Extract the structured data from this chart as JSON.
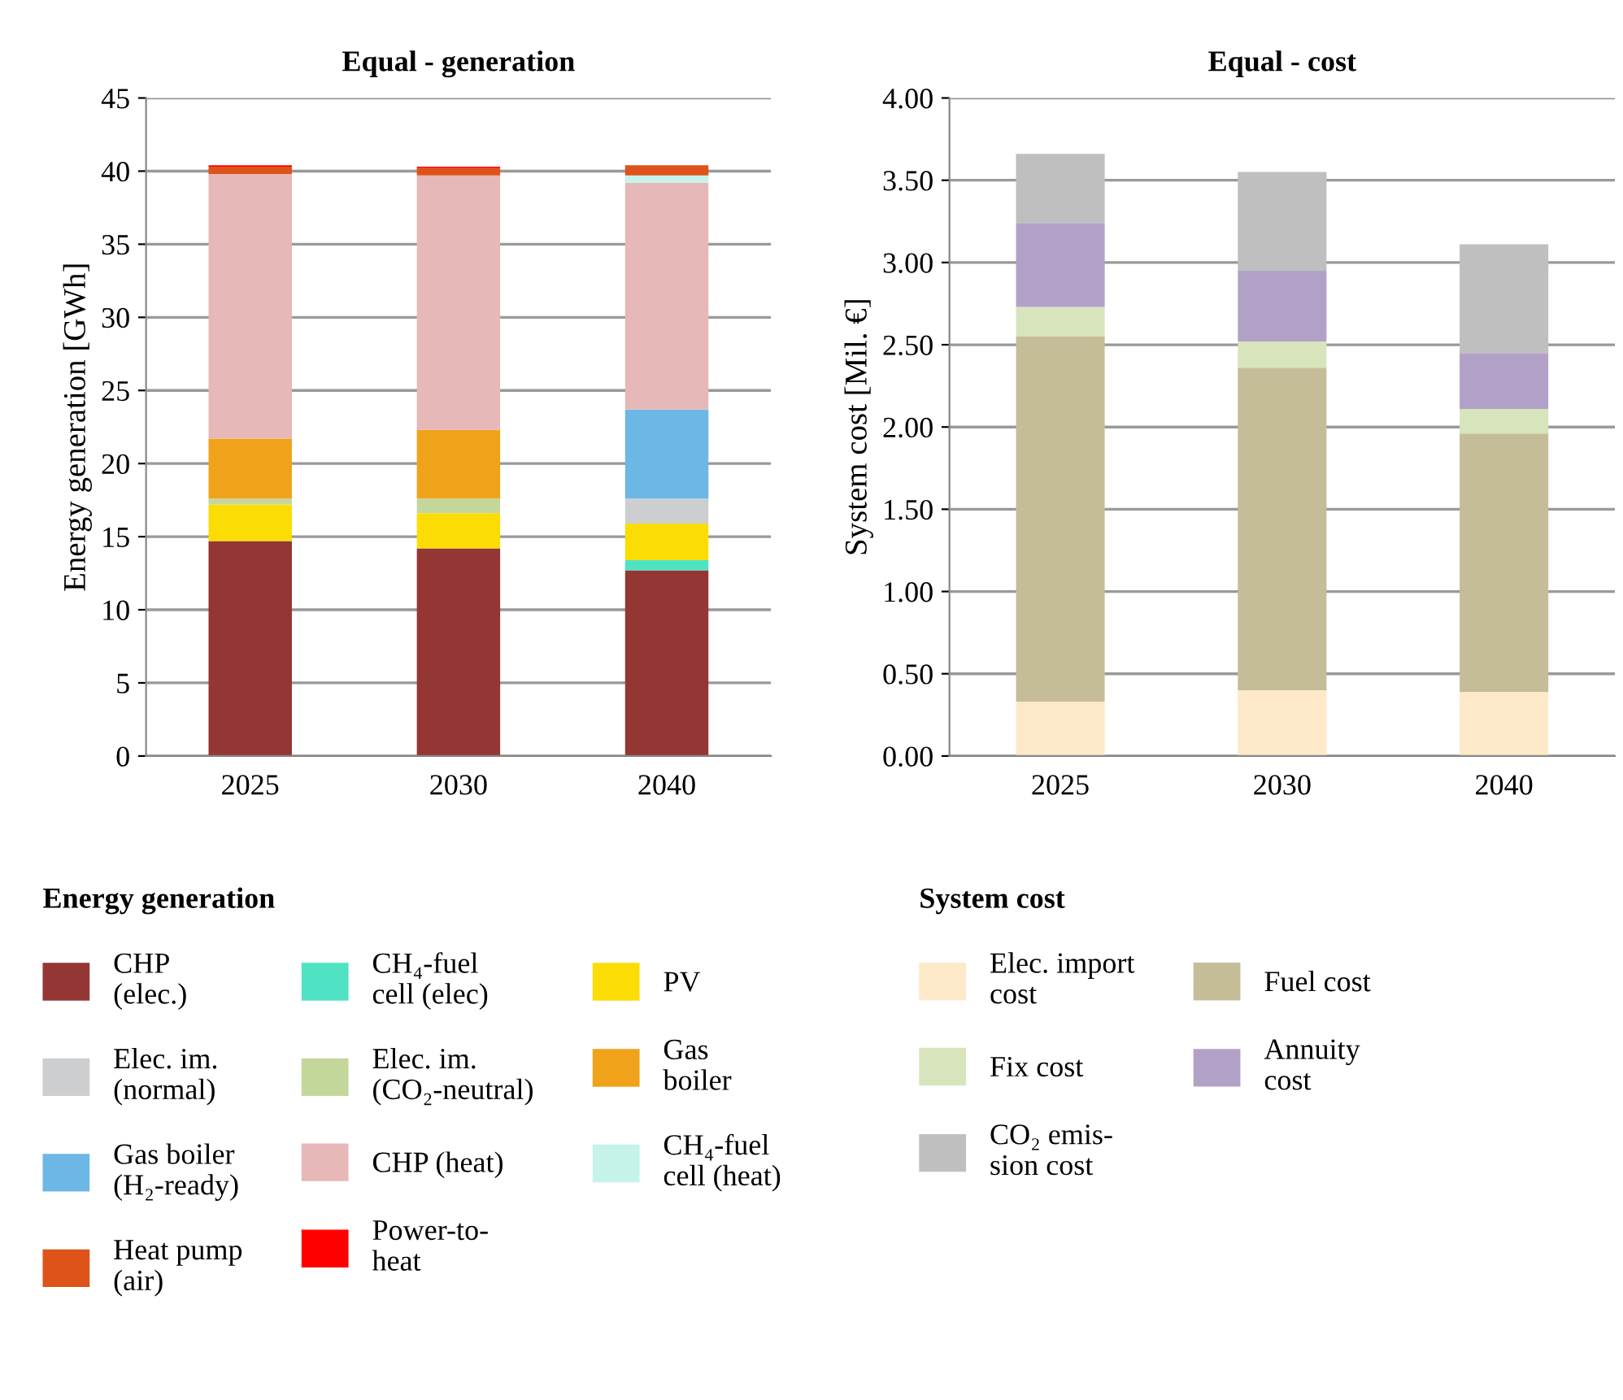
{
  "chart_data": [
    {
      "type": "bar",
      "stacked": true,
      "title": "Equal - generation",
      "ylabel": "Energy generation [GWh]",
      "legend_title": "Energy generation",
      "categories": [
        "2025",
        "2030",
        "2040"
      ],
      "ylim": [
        0,
        45
      ],
      "yticks": [
        0,
        5,
        10,
        15,
        20,
        25,
        30,
        35,
        40,
        45
      ],
      "grid": "y",
      "legend": "bottom",
      "series": [
        {
          "name": "CHP\n(elec.)",
          "color": "#943634",
          "values": [
            14.7,
            14.2,
            12.7
          ]
        },
        {
          "name": "CH₄-fuel\ncell (elec)",
          "color": "#4fe3c4",
          "values": [
            0,
            0,
            0.7
          ]
        },
        {
          "name": "PV",
          "color": "#fcdc05",
          "values": [
            2.5,
            2.4,
            2.5
          ]
        },
        {
          "name": "Elec. im.\n(normal)",
          "color": "#ccced0",
          "values": [
            0,
            0,
            1.7
          ]
        },
        {
          "name": "Elec. im.\n(CO₂-neutral)",
          "color": "#c4d79b",
          "values": [
            0.4,
            1.0,
            0
          ]
        },
        {
          "name": "Gas\nboiler",
          "color": "#f0a31a",
          "values": [
            4.1,
            4.7,
            0
          ]
        },
        {
          "name": "Gas boiler\n(H₂-ready)",
          "color": "#6cb7e6",
          "values": [
            0,
            0,
            6.1
          ]
        },
        {
          "name": "CHP (heat)",
          "color": "#e6b8b7",
          "values": [
            18.1,
            17.4,
            15.5
          ]
        },
        {
          "name": "CH₄-fuel\ncell (heat)",
          "color": "#c5f3e9",
          "values": [
            0,
            0,
            0.5
          ]
        },
        {
          "name": "Heat pump\n(air)",
          "color": "#dd5319",
          "values": [
            0.5,
            0.5,
            0.7
          ]
        },
        {
          "name": "Power-to-\nheat",
          "color": "#ff0000",
          "values": [
            0.1,
            0.1,
            0
          ]
        }
      ]
    },
    {
      "type": "bar",
      "stacked": true,
      "title": "Equal - cost",
      "ylabel": "System cost [Mil. €]",
      "legend_title": "System cost",
      "categories": [
        "2025",
        "2030",
        "2040"
      ],
      "ylim": [
        0,
        4
      ],
      "yticks": [
        {
          "value": 0,
          "label": "0.00"
        },
        {
          "value": 0.5,
          "label": "0.50"
        },
        {
          "value": 1,
          "label": "1.00"
        },
        {
          "value": 1.5,
          "label": "1.50"
        },
        {
          "value": 2,
          "label": "2.00"
        },
        {
          "value": 2.5,
          "label": "2.50"
        },
        {
          "value": 3,
          "label": "3.00"
        },
        {
          "value": 3.5,
          "label": "3.50"
        },
        {
          "value": 4,
          "label": "4.00"
        }
      ],
      "grid": "y",
      "legend": "bottom",
      "series": [
        {
          "name": "Elec. import\ncost",
          "color": "#fde9c9",
          "values": [
            0.33,
            0.4,
            0.39
          ]
        },
        {
          "name": "Fuel cost",
          "color": "#c4bd97",
          "values": [
            2.22,
            1.96,
            1.57
          ]
        },
        {
          "name": "Fix cost",
          "color": "#d8e4bc",
          "values": [
            0.18,
            0.16,
            0.15
          ]
        },
        {
          "name": "Annuity\ncost",
          "color": "#b2a1c7",
          "values": [
            0.51,
            0.43,
            0.34
          ]
        },
        {
          "name": "CO₂ emis-\nsion cost",
          "color": "#bfbfbf",
          "values": [
            0.42,
            0.6,
            0.66
          ]
        }
      ]
    }
  ]
}
